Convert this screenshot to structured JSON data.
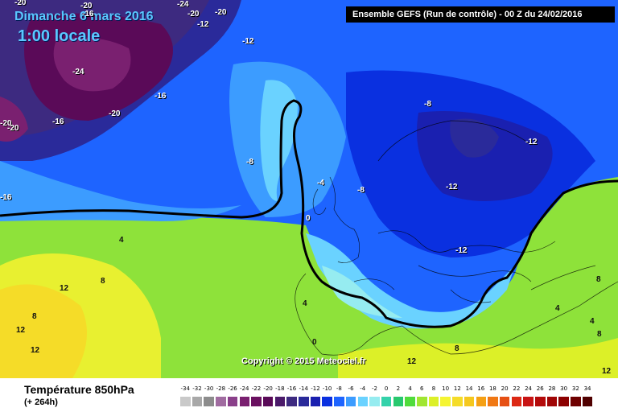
{
  "header": {
    "date": "Dimanche 6 mars 2016",
    "time": "1:00 locale",
    "run": "Ensemble GEFS  (Run de contrôle)  -  00 Z du 24/02/2016"
  },
  "copyright": "Copyright © 2015 Meteociel.fr",
  "footer": {
    "title": "Température 850hPa",
    "subtitle": "(+ 264h)"
  },
  "scale": {
    "values": [
      "-34",
      "-32",
      "-30",
      "-28",
      "-26",
      "-24",
      "-22",
      "-20",
      "-18",
      "-16",
      "-14",
      "-12",
      "-10",
      "-8",
      "-6",
      "-4",
      "-2",
      "0",
      "2",
      "4",
      "6",
      "8",
      "10",
      "12",
      "14",
      "16",
      "18",
      "20",
      "22",
      "24",
      "26",
      "28",
      "30",
      "32",
      "34"
    ],
    "colors": [
      "#c9c9c9",
      "#a8a8a8",
      "#8c8c8c",
      "#a06ba0",
      "#8a3f8a",
      "#7a2070",
      "#6a1060",
      "#5a0a58",
      "#4b1a6a",
      "#3d2a80",
      "#2a2a9a",
      "#1a20b0",
      "#0a30e0",
      "#1e64ff",
      "#3c9cff",
      "#6ad2ff",
      "#96ecf0",
      "#34d2aa",
      "#28c86e",
      "#50dc3c",
      "#a0e632",
      "#dcf028",
      "#f5f532",
      "#f5dc28",
      "#f5c81e",
      "#f5a014",
      "#f07814",
      "#e65014",
      "#dc2814",
      "#c81414",
      "#b40a0a",
      "#a00505",
      "#8c0000",
      "#6e0000",
      "#500000"
    ]
  },
  "map_labels": [
    {
      "text": "-20"
    },
    {
      "text": "-20"
    },
    {
      "text": "-16"
    },
    {
      "text": "-24"
    },
    {
      "text": "-20"
    },
    {
      "text": "-20"
    },
    {
      "text": "-12"
    },
    {
      "text": "-12"
    },
    {
      "text": "-24"
    },
    {
      "text": "-16"
    },
    {
      "text": "-20"
    },
    {
      "text": "-16"
    },
    {
      "text": "-20"
    },
    {
      "text": "-20"
    },
    {
      "text": "-16"
    },
    {
      "text": "-8"
    },
    {
      "text": "-8"
    },
    {
      "text": "-4"
    },
    {
      "text": "-8"
    },
    {
      "text": "0"
    },
    {
      "text": "-12"
    },
    {
      "text": "-12"
    },
    {
      "text": "-12"
    },
    {
      "text": "4"
    },
    {
      "text": "8"
    },
    {
      "text": "12"
    },
    {
      "text": "8"
    },
    {
      "text": "12"
    },
    {
      "text": "12"
    },
    {
      "text": "4"
    },
    {
      "text": "0"
    },
    {
      "text": "8"
    },
    {
      "text": "12"
    },
    {
      "text": "8"
    },
    {
      "text": "4"
    },
    {
      "text": "4"
    },
    {
      "text": "8"
    },
    {
      "text": "12"
    }
  ]
}
